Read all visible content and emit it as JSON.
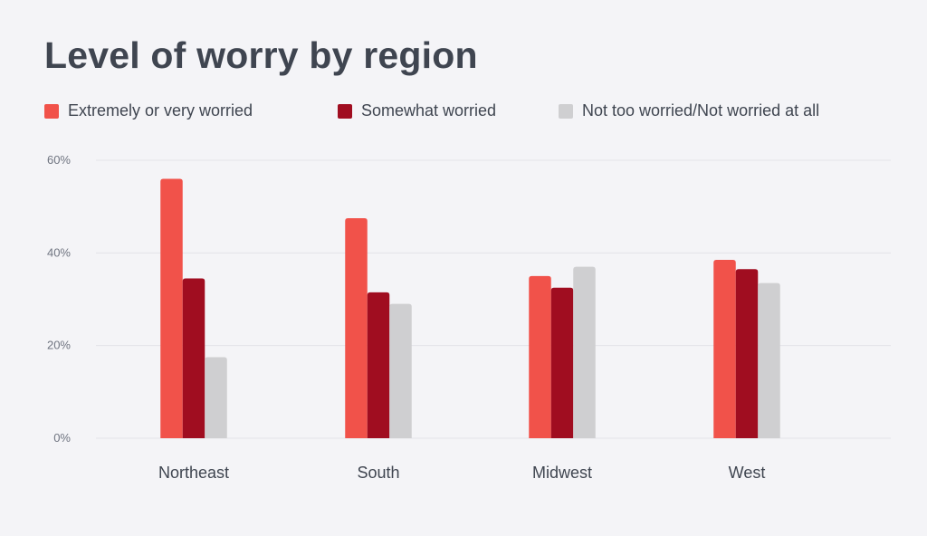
{
  "chart_data": {
    "type": "bar",
    "title": "Level of worry by region",
    "categories": [
      "Northeast",
      "South",
      "Midwest",
      "West"
    ],
    "series": [
      {
        "name": "Extremely or very worried",
        "color": "#f1524a",
        "values": [
          56,
          47.5,
          35,
          38.5
        ]
      },
      {
        "name": "Somewhat worried",
        "color": "#a00d20",
        "values": [
          34.5,
          31.5,
          32.5,
          36.5
        ]
      },
      {
        "name": "Not too worried/Not worried at all",
        "color": "#cfcfd1",
        "values": [
          17.5,
          29,
          37,
          33.5
        ]
      }
    ],
    "yticks": [
      "0%",
      "20%",
      "40%",
      "60%"
    ],
    "ytick_values": [
      0,
      20,
      40,
      60
    ],
    "ylim": [
      0,
      60
    ],
    "xlabel": "",
    "ylabel": "",
    "grid": true,
    "legend_position": "top"
  },
  "colors": {
    "background": "#f4f4f7",
    "gridline": "#e3e3e8",
    "text": "#3f4550"
  }
}
